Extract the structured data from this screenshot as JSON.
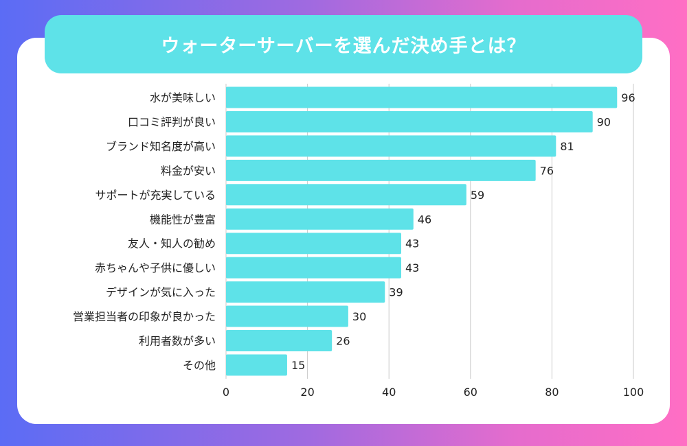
{
  "title": "ウォーターサーバーを選んだ決め手とは？",
  "colors": {
    "bar": "#5ee2e8",
    "banner": "#5ee2e8",
    "grid": "#c9c9c9",
    "text": "#222222"
  },
  "chart_data": {
    "type": "bar",
    "orientation": "horizontal",
    "categories": [
      "水が美味しい",
      "口コミ評判が良い",
      "ブランド知名度が高い",
      "料金が安い",
      "サポートが充実している",
      "機能性が豊富",
      "友人・知人の勧め",
      "赤ちゃんや子供に優しい",
      "デザインが気に入った",
      "営業担当者の印象が良かった",
      "利用者数が多い",
      "その他"
    ],
    "values": [
      96,
      90,
      81,
      76,
      59,
      46,
      43,
      43,
      39,
      30,
      26,
      15
    ],
    "xlim": [
      0,
      100
    ],
    "xticks": [
      0,
      20,
      40,
      60,
      80,
      100
    ],
    "grid": "vertical",
    "data_labels": true
  }
}
